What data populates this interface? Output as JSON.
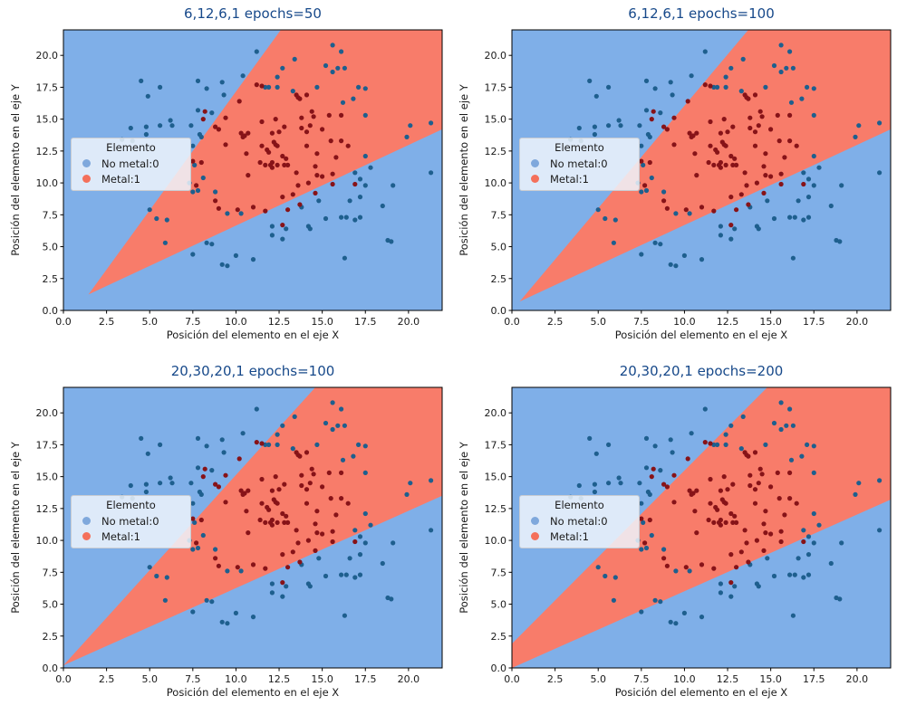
{
  "chart_data": {
    "type": "scatter",
    "xlabel": "Posición del elemento en el eje X",
    "ylabel": "Posición del elemento en el eje Y",
    "xlim": [
      0,
      21.95
    ],
    "ylim": [
      0,
      22
    ],
    "tick_values": [
      0,
      2.5,
      5,
      7.5,
      10,
      12.5,
      15,
      17.5,
      20
    ],
    "title_color": "#17498A",
    "region_colors": {
      "no_metal": "#7FAFE8",
      "metal": "#F87C6A"
    },
    "classes": [
      {
        "name": "No metal:0",
        "dot_color": "#1E5F8E"
      },
      {
        "name": "Metal:1",
        "dot_color": "#871318"
      }
    ],
    "legend": {
      "title": "Elemento",
      "entries": [
        {
          "label": "No metal:0",
          "color": "#7FA8DC"
        },
        {
          "label": "Metal:1",
          "color": "#F4705B"
        }
      ]
    },
    "panels": [
      {
        "title": "6,12,6,1 epochs=50",
        "red_region": [
          [
            1.45,
            1.25
          ],
          [
            12.6,
            22
          ],
          [
            21.95,
            22
          ],
          [
            21.95,
            14.2
          ]
        ]
      },
      {
        "title": "6,12,6,1 epochs=100",
        "red_region": [
          [
            0.45,
            0.7
          ],
          [
            13.7,
            22
          ],
          [
            21.95,
            22
          ],
          [
            21.95,
            14.2
          ]
        ]
      },
      {
        "title": "20,30,20,1 epochs=100",
        "red_region": [
          [
            0.0,
            0.2
          ],
          [
            14.6,
            22
          ],
          [
            21.95,
            22
          ],
          [
            21.95,
            13.5
          ]
        ]
      },
      {
        "title": "20,30,20,1 epochs=200",
        "red_region": [
          [
            0.0,
            0.0
          ],
          [
            0.0,
            1.9
          ],
          [
            14.8,
            22
          ],
          [
            21.95,
            22
          ],
          [
            21.95,
            13.2
          ]
        ]
      }
    ],
    "points": [
      [
        4.5,
        18.0,
        0
      ],
      [
        5.6,
        17.5,
        0
      ],
      [
        4.9,
        16.8,
        0
      ],
      [
        7.8,
        18.0,
        0
      ],
      [
        8.3,
        17.4,
        0
      ],
      [
        9.2,
        17.9,
        0
      ],
      [
        9.3,
        16.9,
        0
      ],
      [
        10.4,
        18.4,
        0
      ],
      [
        11.2,
        20.3,
        0
      ],
      [
        12.7,
        19.0,
        0
      ],
      [
        13.4,
        19.7,
        0
      ],
      [
        15.6,
        20.8,
        0
      ],
      [
        16.1,
        20.3,
        0
      ],
      [
        15.2,
        19.2,
        0
      ],
      [
        15.6,
        18.7,
        0
      ],
      [
        15.9,
        19.0,
        0
      ],
      [
        16.3,
        19.0,
        0
      ],
      [
        12.4,
        18.3,
        0
      ],
      [
        11.7,
        17.5,
        0
      ],
      [
        11.9,
        17.5,
        0
      ],
      [
        12.4,
        17.5,
        0
      ],
      [
        13.3,
        17.2,
        0
      ],
      [
        14.7,
        17.5,
        0
      ],
      [
        16.2,
        16.3,
        0
      ],
      [
        16.8,
        16.6,
        0
      ],
      [
        17.1,
        17.5,
        0
      ],
      [
        17.5,
        17.4,
        0
      ],
      [
        3.9,
        14.3,
        0
      ],
      [
        4.8,
        14.4,
        0
      ],
      [
        4.8,
        13.8,
        0
      ],
      [
        4.0,
        13.3,
        0
      ],
      [
        3.4,
        13.4,
        0
      ],
      [
        5.6,
        14.5,
        0
      ],
      [
        6.3,
        14.5,
        0
      ],
      [
        6.2,
        14.9,
        0
      ],
      [
        7.4,
        14.5,
        0
      ],
      [
        7.8,
        15.7,
        0
      ],
      [
        8.6,
        15.5,
        0
      ],
      [
        7.9,
        13.8,
        0
      ],
      [
        8.0,
        13.6,
        0
      ],
      [
        7.5,
        12.9,
        0
      ],
      [
        17.5,
        15.3,
        0
      ],
      [
        20.1,
        14.5,
        0
      ],
      [
        21.3,
        14.7,
        0
      ],
      [
        19.9,
        13.6,
        0
      ],
      [
        17.5,
        12.1,
        0
      ],
      [
        17.8,
        11.2,
        0
      ],
      [
        21.3,
        10.8,
        0
      ],
      [
        19.1,
        9.8,
        0
      ],
      [
        18.5,
        8.2,
        0
      ],
      [
        17.2,
        8.9,
        0
      ],
      [
        17.2,
        7.3,
        0
      ],
      [
        16.9,
        7.1,
        0
      ],
      [
        16.4,
        7.3,
        0
      ],
      [
        16.1,
        7.3,
        0
      ],
      [
        15.2,
        7.2,
        0
      ],
      [
        18.8,
        5.5,
        0
      ],
      [
        19.0,
        5.4,
        0
      ],
      [
        16.3,
        4.1,
        0
      ],
      [
        11.0,
        4.0,
        0
      ],
      [
        9.2,
        3.6,
        0
      ],
      [
        9.5,
        3.5,
        0
      ],
      [
        10.0,
        4.3,
        0
      ],
      [
        12.1,
        5.9,
        0
      ],
      [
        12.7,
        5.6,
        0
      ],
      [
        12.9,
        6.4,
        0
      ],
      [
        14.2,
        6.6,
        0
      ],
      [
        14.3,
        6.4,
        0
      ],
      [
        12.1,
        6.6,
        0
      ],
      [
        8.3,
        5.3,
        0
      ],
      [
        8.6,
        5.2,
        0
      ],
      [
        7.5,
        4.4,
        0
      ],
      [
        5.9,
        5.3,
        0
      ],
      [
        5.0,
        7.9,
        0
      ],
      [
        5.4,
        7.2,
        0
      ],
      [
        6.0,
        7.1,
        0
      ],
      [
        7.3,
        10.0,
        0
      ],
      [
        7.5,
        9.3,
        0
      ],
      [
        7.8,
        9.4,
        0
      ],
      [
        8.8,
        9.3,
        0
      ],
      [
        9.5,
        7.6,
        0
      ],
      [
        10.3,
        7.6,
        0
      ],
      [
        8.1,
        10.4,
        0
      ],
      [
        7.6,
        11.4,
        0
      ],
      [
        13.8,
        8.1,
        0
      ],
      [
        14.8,
        8.6,
        0
      ],
      [
        16.6,
        8.6,
        0
      ],
      [
        16.9,
        10.8,
        0
      ],
      [
        17.2,
        10.3,
        0
      ],
      [
        17.5,
        9.8,
        0
      ],
      [
        8.2,
        15.6,
        1
      ],
      [
        8.1,
        15.0,
        1
      ],
      [
        8.8,
        14.4,
        1
      ],
      [
        9.0,
        14.2,
        1
      ],
      [
        9.4,
        15.1,
        1
      ],
      [
        10.2,
        16.4,
        1
      ],
      [
        10.3,
        13.9,
        1
      ],
      [
        10.5,
        13.7,
        1
      ],
      [
        10.7,
        13.9,
        1
      ],
      [
        10.4,
        13.6,
        1
      ],
      [
        11.2,
        17.7,
        1
      ],
      [
        11.5,
        17.6,
        1
      ],
      [
        13.5,
        16.9,
        1
      ],
      [
        13.6,
        16.7,
        1
      ],
      [
        13.7,
        16.6,
        1
      ],
      [
        14.1,
        16.9,
        1
      ],
      [
        11.5,
        14.8,
        1
      ],
      [
        12.3,
        15.0,
        1
      ],
      [
        12.5,
        14.0,
        1
      ],
      [
        12.8,
        14.4,
        1
      ],
      [
        12.1,
        13.9,
        1
      ],
      [
        11.5,
        12.9,
        1
      ],
      [
        12.2,
        13.2,
        1
      ],
      [
        11.8,
        12.6,
        1
      ],
      [
        11.9,
        12.4,
        1
      ],
      [
        12.3,
        13.0,
        1
      ],
      [
        12.4,
        12.9,
        1
      ],
      [
        11.4,
        11.6,
        1
      ],
      [
        11.7,
        11.4,
        1
      ],
      [
        12.0,
        11.4,
        1
      ],
      [
        12.1,
        11.6,
        1
      ],
      [
        12.4,
        11.4,
        1
      ],
      [
        12.1,
        11.2,
        1
      ],
      [
        12.7,
        12.1,
        1
      ],
      [
        12.9,
        11.9,
        1
      ],
      [
        12.8,
        11.4,
        1
      ],
      [
        13.0,
        11.4,
        1
      ],
      [
        13.8,
        15.1,
        1
      ],
      [
        14.4,
        15.6,
        1
      ],
      [
        14.5,
        15.2,
        1
      ],
      [
        13.8,
        14.3,
        1
      ],
      [
        14.3,
        14.5,
        1
      ],
      [
        14.1,
        14.0,
        1
      ],
      [
        15.0,
        14.2,
        1
      ],
      [
        15.4,
        15.3,
        1
      ],
      [
        16.1,
        15.3,
        1
      ],
      [
        15.5,
        13.3,
        1
      ],
      [
        16.1,
        13.3,
        1
      ],
      [
        16.5,
        12.9,
        1
      ],
      [
        14.1,
        12.9,
        1
      ],
      [
        14.7,
        12.3,
        1
      ],
      [
        14.6,
        11.3,
        1
      ],
      [
        15.8,
        12.0,
        1
      ],
      [
        13.5,
        10.8,
        1
      ],
      [
        14.7,
        10.6,
        1
      ],
      [
        15.0,
        10.5,
        1
      ],
      [
        15.6,
        10.7,
        1
      ],
      [
        13.6,
        9.8,
        1
      ],
      [
        14.2,
        10.0,
        1
      ],
      [
        15.6,
        9.9,
        1
      ],
      [
        16.9,
        9.9,
        1
      ],
      [
        12.7,
        8.9,
        1
      ],
      [
        13.3,
        9.1,
        1
      ],
      [
        14.6,
        9.2,
        1
      ],
      [
        13.7,
        8.3,
        1
      ],
      [
        11.0,
        8.1,
        1
      ],
      [
        11.7,
        7.8,
        1
      ],
      [
        13.0,
        7.9,
        1
      ],
      [
        12.7,
        6.7,
        1
      ],
      [
        7.7,
        9.8,
        1
      ],
      [
        8.8,
        8.6,
        1
      ],
      [
        9.0,
        8.0,
        1
      ],
      [
        10.1,
        7.9,
        1
      ],
      [
        7.5,
        11.7,
        1
      ],
      [
        8.0,
        11.6,
        1
      ],
      [
        10.6,
        12.3,
        1
      ],
      [
        10.7,
        10.6,
        1
      ],
      [
        9.4,
        13.0,
        1
      ]
    ]
  }
}
